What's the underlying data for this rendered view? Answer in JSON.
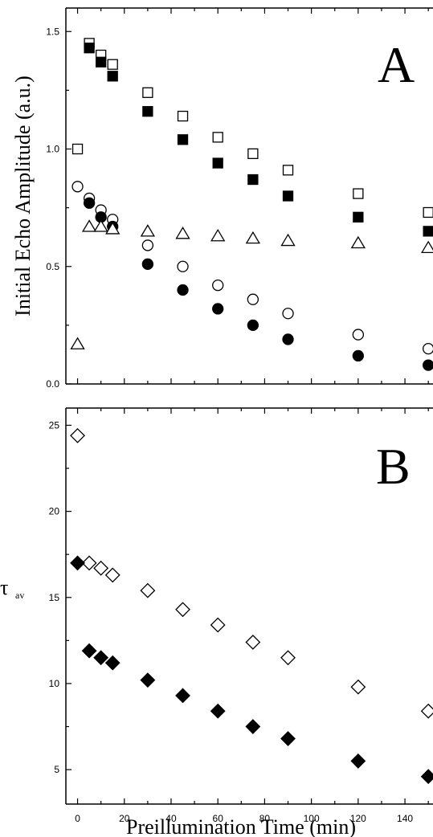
{
  "chart_data": [
    {
      "panel": "A",
      "type": "scatter",
      "panel_label": "A",
      "ylabel": "Initial Echo Amplitude (a.u.)",
      "xlabel": "",
      "xlim": [
        -5,
        152
      ],
      "ylim": [
        0,
        1.6
      ],
      "x_ticks": [
        0,
        20,
        40,
        60,
        80,
        100,
        120,
        140
      ],
      "y_ticks": [
        0.0,
        0.5,
        1.0,
        1.5
      ],
      "y_tick_labels": [
        "0.0",
        "0.5",
        "1.0",
        "1.5"
      ],
      "grid": false,
      "series": [
        {
          "marker": "square-open",
          "x": [
            0,
            5,
            10,
            15,
            30,
            45,
            60,
            75,
            90,
            120,
            150
          ],
          "y": [
            1.0,
            1.45,
            1.4,
            1.36,
            1.24,
            1.14,
            1.05,
            0.98,
            0.91,
            0.81,
            0.73
          ]
        },
        {
          "marker": "square-filled",
          "x": [
            5,
            10,
            15,
            30,
            45,
            60,
            75,
            90,
            120,
            150
          ],
          "y": [
            1.43,
            1.37,
            1.31,
            1.16,
            1.04,
            0.94,
            0.87,
            0.8,
            0.71,
            0.65
          ]
        },
        {
          "marker": "circle-open",
          "x": [
            0,
            5,
            10,
            15,
            30,
            45,
            60,
            75,
            90,
            120,
            150
          ],
          "y": [
            0.84,
            0.79,
            0.74,
            0.7,
            0.59,
            0.5,
            0.42,
            0.36,
            0.3,
            0.21,
            0.15
          ]
        },
        {
          "marker": "circle-filled",
          "x": [
            5,
            10,
            15,
            30,
            45,
            60,
            75,
            90,
            120,
            150
          ],
          "y": [
            0.77,
            0.71,
            0.67,
            0.51,
            0.4,
            0.32,
            0.25,
            0.19,
            0.12,
            0.08
          ]
        },
        {
          "marker": "triangle-open",
          "x": [
            0,
            5,
            10,
            15,
            30,
            45,
            60,
            75,
            90,
            120,
            150
          ],
          "y": [
            0.17,
            0.67,
            0.67,
            0.66,
            0.65,
            0.64,
            0.63,
            0.62,
            0.61,
            0.6,
            0.58
          ]
        }
      ]
    },
    {
      "panel": "B",
      "type": "scatter",
      "panel_label": "B",
      "ylabel": "τav",
      "ylabel_main": "τ",
      "ylabel_sub": "av",
      "xlabel": "Preillumination Time (min)",
      "xlim": [
        -5,
        152
      ],
      "ylim": [
        3,
        26
      ],
      "x_ticks": [
        0,
        20,
        40,
        60,
        80,
        100,
        120,
        140
      ],
      "x_tick_labels": [
        "0",
        "20",
        "40",
        "60",
        "80",
        "100",
        "120",
        "140"
      ],
      "y_ticks": [
        5,
        10,
        15,
        20,
        25
      ],
      "y_tick_labels": [
        "5",
        "10",
        "15",
        "20",
        "25"
      ],
      "grid": false,
      "series": [
        {
          "marker": "diamond-open",
          "x": [
            0,
            5,
            10,
            15,
            30,
            45,
            60,
            75,
            90,
            120,
            150
          ],
          "y": [
            24.4,
            17.0,
            16.7,
            16.3,
            15.4,
            14.3,
            13.4,
            12.4,
            11.5,
            9.8,
            8.4
          ]
        },
        {
          "marker": "diamond-filled",
          "x": [
            0,
            5,
            10,
            15,
            30,
            45,
            60,
            75,
            90,
            120,
            150
          ],
          "y": [
            17.0,
            11.9,
            11.5,
            11.2,
            10.2,
            9.3,
            8.4,
            7.5,
            6.8,
            5.5,
            4.6
          ]
        }
      ]
    }
  ]
}
